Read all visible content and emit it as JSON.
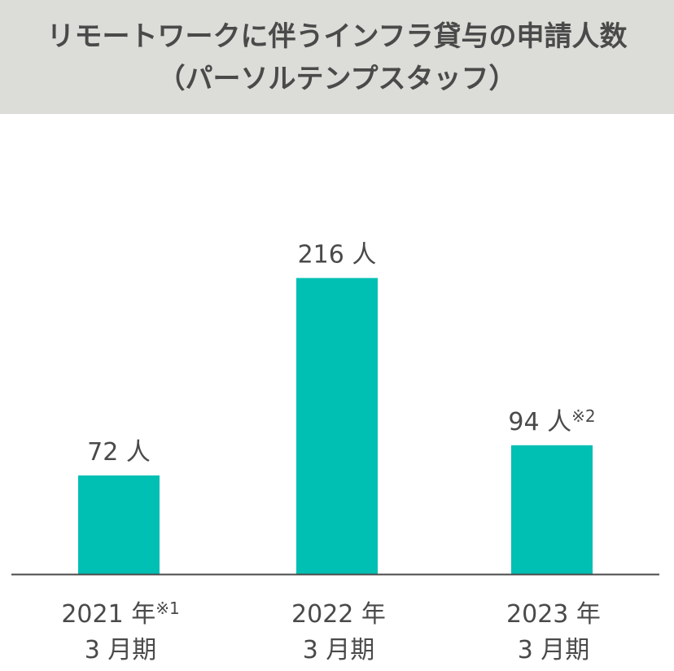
{
  "header": {
    "title_line1": "リモートワークに伴うインフラ貸与の申請人数",
    "title_line2": "（パーソルテンプスタッフ）"
  },
  "chart_data": {
    "type": "bar",
    "categories": [
      "2021年3月期",
      "2022年3月期",
      "2023年3月期"
    ],
    "category_lines": [
      {
        "line1": "2021 年",
        "note": "※1",
        "line2": "3 月期"
      },
      {
        "line1": "2022 年",
        "note": "",
        "line2": "3 月期"
      },
      {
        "line1": "2023 年",
        "note": "",
        "line2": "3 月期"
      }
    ],
    "values": [
      72,
      216,
      94
    ],
    "value_labels": [
      {
        "text": "72 人",
        "note": ""
      },
      {
        "text": "216 人",
        "note": ""
      },
      {
        "text": "94 人",
        "note": "※2"
      }
    ],
    "ylim": [
      0,
      240
    ],
    "bar_color": "#00bfb3",
    "axis_color": "#4a4a4a",
    "grid": false
  }
}
